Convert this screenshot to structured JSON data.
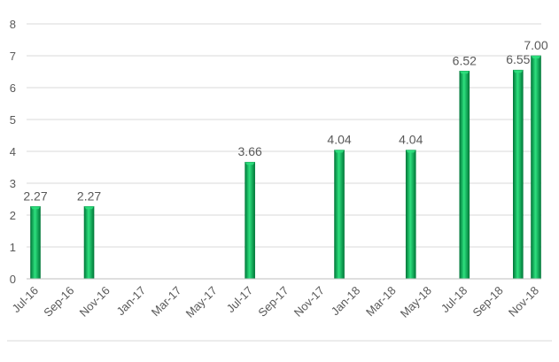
{
  "chart_data": {
    "type": "bar",
    "title": "",
    "xlabel": "",
    "ylabel": "",
    "ylim": [
      0,
      8
    ],
    "y_ticks": [
      0,
      1,
      2,
      3,
      4,
      5,
      6,
      7,
      8
    ],
    "x_ticks": [
      "Jul-16",
      "Sep-16",
      "Nov-16",
      "Jan-17",
      "Mar-17",
      "May-17",
      "Jul-17",
      "Sep-17",
      "Nov-17",
      "Jan-18",
      "Mar-18",
      "May-18",
      "Jul-18",
      "Sep-18",
      "Nov-18"
    ],
    "x_range": [
      "2016-07",
      "2018-11"
    ],
    "grid": true,
    "legend": "none",
    "points": [
      {
        "x": "2016-07",
        "value": 2.27,
        "label": "2.27"
      },
      {
        "x": "2016-10",
        "value": 2.27,
        "label": "2.27"
      },
      {
        "x": "2017-07",
        "value": 3.66,
        "label": "3.66"
      },
      {
        "x": "2017-12",
        "value": 4.04,
        "label": "4.04"
      },
      {
        "x": "2018-04",
        "value": 4.04,
        "label": "4.04"
      },
      {
        "x": "2018-07",
        "value": 6.52,
        "label": "6.52"
      },
      {
        "x": "2018-10",
        "value": 6.55,
        "label": "6.55"
      },
      {
        "x": "2018-11",
        "value": 7.0,
        "label": "7.00"
      }
    ],
    "colors": {
      "bar": "#00a850",
      "bar_dark": "#007a3a",
      "bar_light": "#2ee07e",
      "grid": "#d9d9d9",
      "axis": "#bfbfbf",
      "text": "#595959"
    }
  }
}
